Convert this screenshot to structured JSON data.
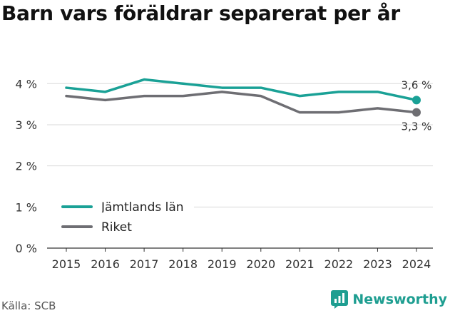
{
  "title": "Barn vars föräldrar separerat per år",
  "source": "Källa: SCB",
  "brand": "Newsworthy",
  "colors": {
    "series_1": "#1aa196",
    "series_2": "#6e6e73",
    "grid": "#d9d9d9",
    "brand": "#1e9e91"
  },
  "chart_data": {
    "type": "line",
    "title": "Barn vars föräldrar separerat per år",
    "x": [
      2015,
      2016,
      2017,
      2018,
      2019,
      2020,
      2021,
      2022,
      2023,
      2024
    ],
    "x_tick_labels": [
      "2015",
      "2016",
      "2017",
      "2018",
      "2019",
      "2020",
      "2021",
      "2022",
      "2023",
      "2024"
    ],
    "y_ticks": [
      0,
      1,
      2,
      3,
      4
    ],
    "y_tick_labels": [
      "0 %",
      "1 %",
      "2 %",
      "3 %",
      "4 %"
    ],
    "ylim": [
      0,
      4.3
    ],
    "grid": true,
    "legend_position": "bottom-left",
    "series": [
      {
        "name": "Jämtlands län",
        "values": [
          3.9,
          3.8,
          4.1,
          4.0,
          3.9,
          3.9,
          3.7,
          3.8,
          3.8,
          3.6
        ],
        "end_label": "3,6 %"
      },
      {
        "name": "Riket",
        "values": [
          3.7,
          3.6,
          3.7,
          3.7,
          3.8,
          3.7,
          3.3,
          3.3,
          3.4,
          3.3
        ],
        "end_label": "3,3 %"
      }
    ]
  }
}
